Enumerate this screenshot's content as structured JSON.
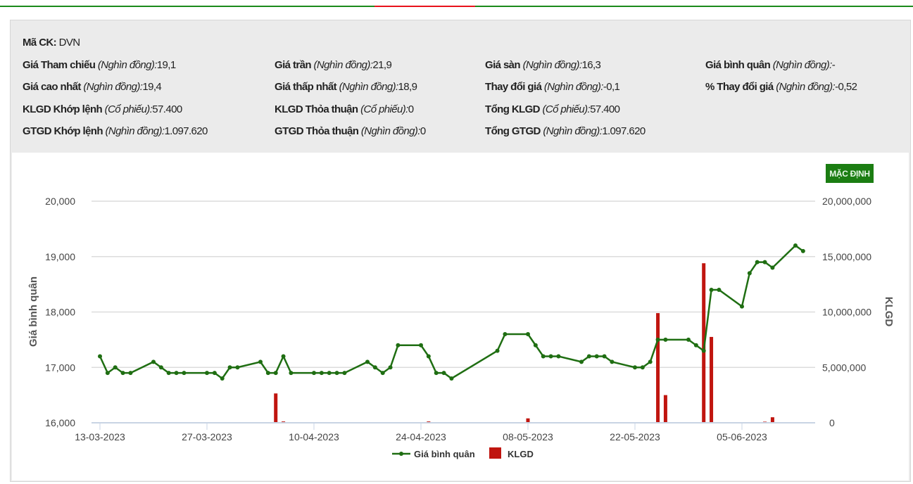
{
  "info": {
    "symbol_label": "Mã CK:",
    "symbol": "DVN",
    "rows": [
      [
        {
          "label": "Giá Tham chiếu",
          "unit": "(Nghìn đồng):",
          "value": "19,1"
        },
        {
          "label": "Giá trần",
          "unit": "(Nghìn đồng):",
          "value": "21,9"
        },
        {
          "label": "Giá sàn",
          "unit": "(Nghìn đồng):",
          "value": "16,3"
        },
        {
          "label": "Giá bình quân",
          "unit": "(Nghìn đồng):",
          "value": "-"
        }
      ],
      [
        {
          "label": "Giá cao nhất",
          "unit": "(Nghìn đồng):",
          "value": "19,4"
        },
        {
          "label": "Giá thấp nhất",
          "unit": "(Nghìn đồng):",
          "value": "18,9"
        },
        {
          "label": "Thay đổi giá",
          "unit": "(Nghìn đồng):",
          "value": "-0,1"
        },
        {
          "label": "% Thay đổi giá",
          "unit": "(Nghìn đồng):",
          "value": "-0,52"
        }
      ],
      [
        {
          "label": "KLGD Khớp lệnh",
          "unit": "(Cổ phiếu):",
          "value": "57.400"
        },
        {
          "label": "KLGD Thỏa thuận",
          "unit": "(Cổ phiếu):",
          "value": "0"
        },
        {
          "label": "Tổng KLGD",
          "unit": "(Cổ phiếu):",
          "value": "57.400"
        }
      ],
      [
        {
          "label": "GTGD Khớp lệnh",
          "unit": "(Nghìn đồng):",
          "value": "1.097.620"
        },
        {
          "label": "GTGD Thỏa thuận",
          "unit": "(Nghìn đồng):",
          "value": "0"
        },
        {
          "label": "Tổng GTGD",
          "unit": "(Nghìn đồng):",
          "value": "1.097.620"
        }
      ]
    ]
  },
  "default_button": "MẶC ĐỊNH",
  "chart_data": {
    "type": "line+bar",
    "ylabel_left": "Giá bình quân",
    "ylabel_right": "KLGD",
    "ylim_left": [
      16000,
      20000
    ],
    "ylim_right": [
      0,
      20000000
    ],
    "yticks_left": [
      "16,000",
      "17,000",
      "18,000",
      "19,000",
      "20,000"
    ],
    "yticks_right": [
      "0",
      "5,000,000",
      "10,000,000",
      "15,000,000",
      "20,000,000"
    ],
    "xticks": [
      "13-03-2023",
      "27-03-2023",
      "10-04-2023",
      "24-04-2023",
      "08-05-2023",
      "22-05-2023",
      "05-06-2023"
    ],
    "grid": true,
    "legend_position": "bottom",
    "colors": {
      "line": "#1f6e12",
      "bar": "#c0150f",
      "grid": "#dcdcdc",
      "axis": "#c8d4e4"
    },
    "series": [
      {
        "name": "Giá bình quân",
        "type": "line"
      },
      {
        "name": "KLGD",
        "type": "bar"
      }
    ],
    "points": [
      [
        "2023-03-13",
        17200,
        20000
      ],
      [
        "2023-03-14",
        16900,
        10000
      ],
      [
        "2023-03-15",
        17000,
        10000
      ],
      [
        "2023-03-16",
        16900,
        10000
      ],
      [
        "2023-03-17",
        16900,
        10000
      ],
      [
        "2023-03-20",
        17100,
        30000
      ],
      [
        "2023-03-21",
        17000,
        10000
      ],
      [
        "2023-03-22",
        16900,
        10000
      ],
      [
        "2023-03-23",
        16900,
        10000
      ],
      [
        "2023-03-24",
        16900,
        10000
      ],
      [
        "2023-03-27",
        16900,
        10000
      ],
      [
        "2023-03-28",
        16900,
        10000
      ],
      [
        "2023-03-29",
        16800,
        10000
      ],
      [
        "2023-03-30",
        17000,
        10000
      ],
      [
        "2023-03-31",
        17000,
        10000
      ],
      [
        "2023-04-03",
        17100,
        30000
      ],
      [
        "2023-04-04",
        16900,
        10000
      ],
      [
        "2023-04-05",
        16900,
        2650000
      ],
      [
        "2023-04-06",
        17200,
        120000
      ],
      [
        "2023-04-07",
        16900,
        10000
      ],
      [
        "2023-04-10",
        16900,
        10000
      ],
      [
        "2023-04-11",
        16900,
        10000
      ],
      [
        "2023-04-12",
        16900,
        10000
      ],
      [
        "2023-04-13",
        16900,
        10000
      ],
      [
        "2023-04-14",
        16900,
        10000
      ],
      [
        "2023-04-17",
        17100,
        10000
      ],
      [
        "2023-04-18",
        17000,
        10000
      ],
      [
        "2023-04-19",
        16900,
        10000
      ],
      [
        "2023-04-20",
        17000,
        30000
      ],
      [
        "2023-04-21",
        17400,
        10000
      ],
      [
        "2023-04-24",
        17400,
        10000
      ],
      [
        "2023-04-25",
        17200,
        120000
      ],
      [
        "2023-04-26",
        16900,
        30000
      ],
      [
        "2023-04-27",
        16900,
        10000
      ],
      [
        "2023-04-28",
        16800,
        10000
      ],
      [
        "2023-05-04",
        17300,
        10000
      ],
      [
        "2023-05-05",
        17600,
        30000
      ],
      [
        "2023-05-08",
        17600,
        400000
      ],
      [
        "2023-05-09",
        17400,
        10000
      ],
      [
        "2023-05-10",
        17200,
        10000
      ],
      [
        "2023-05-11",
        17200,
        10000
      ],
      [
        "2023-05-12",
        17200,
        10000
      ],
      [
        "2023-05-15",
        17100,
        10000
      ],
      [
        "2023-05-16",
        17200,
        10000
      ],
      [
        "2023-05-17",
        17200,
        10000
      ],
      [
        "2023-05-18",
        17200,
        10000
      ],
      [
        "2023-05-19",
        17100,
        10000
      ],
      [
        "2023-05-22",
        17000,
        10000
      ],
      [
        "2023-05-23",
        17000,
        10000
      ],
      [
        "2023-05-24",
        17100,
        30000
      ],
      [
        "2023-05-25",
        17500,
        9900000
      ],
      [
        "2023-05-26",
        17500,
        2500000
      ],
      [
        "2023-05-29",
        17500,
        30000
      ],
      [
        "2023-05-30",
        17400,
        10000
      ],
      [
        "2023-05-31",
        17300,
        14400000
      ],
      [
        "2023-06-01",
        18400,
        7750000
      ],
      [
        "2023-06-02",
        18400,
        10000
      ],
      [
        "2023-06-05",
        18100,
        10000
      ],
      [
        "2023-06-06",
        18700,
        10000
      ],
      [
        "2023-06-07",
        18900,
        10000
      ],
      [
        "2023-06-08",
        18900,
        100000
      ],
      [
        "2023-06-09",
        18800,
        500000
      ],
      [
        "2023-06-12",
        19200,
        30000
      ],
      [
        "2023-06-13",
        19100,
        57400
      ]
    ]
  }
}
